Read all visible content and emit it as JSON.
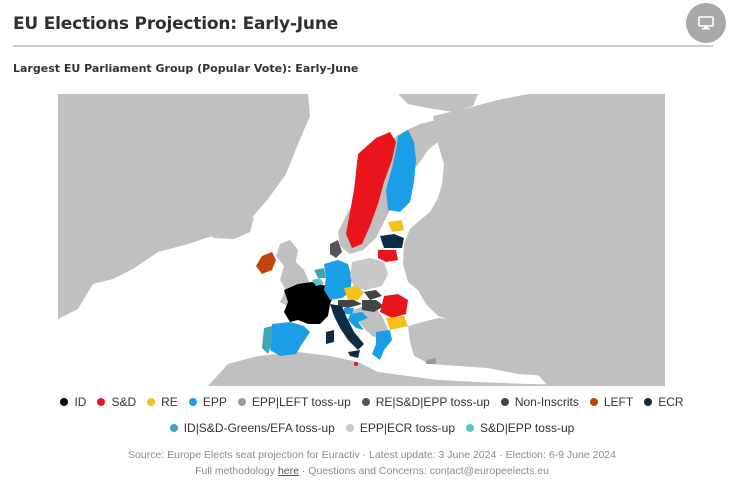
{
  "header": {
    "title": "EU Elections Projection: Early-June",
    "subtitle": "Largest EU Parliament Group (Popular Vote): Early-June",
    "present_icon": "monitor-icon"
  },
  "colors": {
    "land": "#c0c0c0",
    "border": "#ffffff",
    "sea": "#ffffff",
    "ID": "#000000",
    "S&D": "#e8161c",
    "RE": "#f6c218",
    "EPP": "#1a9ee6",
    "EPP|LEFT toss-up": "#9a9a9a",
    "RE|S&D|EPP toss-up": "#555555",
    "Non-Inscrits": "#444444",
    "LEFT": "#c1440e",
    "ECR": "#0d2b45",
    "ID|S&D-Greens/EFA toss-up": "#3ea6b8",
    "EPP|ECR toss-up": "#c8c8c8",
    "S&D|EPP toss-up": "#5ec2d6"
  },
  "legend": {
    "row1": [
      {
        "label": "ID",
        "color": "#000000"
      },
      {
        "label": "S&D",
        "color": "#e8161c"
      },
      {
        "label": "RE",
        "color": "#f6c218"
      },
      {
        "label": "EPP",
        "color": "#1a9ee6"
      },
      {
        "label": "EPP|LEFT toss-up",
        "color": "#9a9a9a"
      },
      {
        "label": "RE|S&D|EPP toss-up",
        "color": "#555555"
      },
      {
        "label": "Non-Inscrits",
        "color": "#444444"
      },
      {
        "label": "LEFT",
        "color": "#c1440e"
      },
      {
        "label": "ECR",
        "color": "#0d2b45"
      }
    ],
    "row2": [
      {
        "label": "ID|S&D-Greens/EFA toss-up",
        "color": "#3ea6b8"
      },
      {
        "label": "EPP|ECR toss-up",
        "color": "#c8c8c8"
      },
      {
        "label": "S&D|EPP toss-up",
        "color": "#5ec2d6"
      }
    ]
  },
  "countries": [
    {
      "name": "France",
      "group": "ID"
    },
    {
      "name": "Belgium",
      "group": "S&D|EPP toss-up"
    },
    {
      "name": "Netherlands",
      "group": "ID|S&D-Greens/EFA toss-up"
    },
    {
      "name": "Luxembourg",
      "group": "EPP"
    },
    {
      "name": "Germany",
      "group": "EPP"
    },
    {
      "name": "Denmark",
      "group": "RE|S&D|EPP toss-up"
    },
    {
      "name": "Sweden",
      "group": "S&D"
    },
    {
      "name": "Finland",
      "group": "EPP"
    },
    {
      "name": "Estonia",
      "group": "RE"
    },
    {
      "name": "Latvia",
      "group": "ECR"
    },
    {
      "name": "Lithuania",
      "group": "S&D"
    },
    {
      "name": "Poland",
      "group": "EPP|ECR toss-up"
    },
    {
      "name": "Czechia",
      "group": "RE"
    },
    {
      "name": "Slovakia",
      "group": "Non-Inscrits"
    },
    {
      "name": "Austria",
      "group": "Non-Inscrits"
    },
    {
      "name": "Hungary",
      "group": "Non-Inscrits"
    },
    {
      "name": "Slovenia",
      "group": "EPP"
    },
    {
      "name": "Croatia",
      "group": "EPP"
    },
    {
      "name": "Italy",
      "group": "ECR"
    },
    {
      "name": "Spain",
      "group": "EPP"
    },
    {
      "name": "Portugal",
      "group": "ID|S&D-Greens/EFA toss-up"
    },
    {
      "name": "Ireland",
      "group": "LEFT"
    },
    {
      "name": "Romania",
      "group": "S&D"
    },
    {
      "name": "Bulgaria",
      "group": "RE"
    },
    {
      "name": "Greece",
      "group": "EPP"
    },
    {
      "name": "Cyprus",
      "group": "EPP|LEFT toss-up"
    },
    {
      "name": "Malta",
      "group": "S&D"
    }
  ],
  "footer": {
    "source": "Source: Europe Elects seat projection for Euractiv · Latest update: 3 June 2024 · Election: 6-9 June 2024",
    "methodology_prefix": "Full methodology ",
    "methodology_link": "here",
    "methodology_suffix": " · Questions and Concerns: contact@europeelects.eu"
  }
}
